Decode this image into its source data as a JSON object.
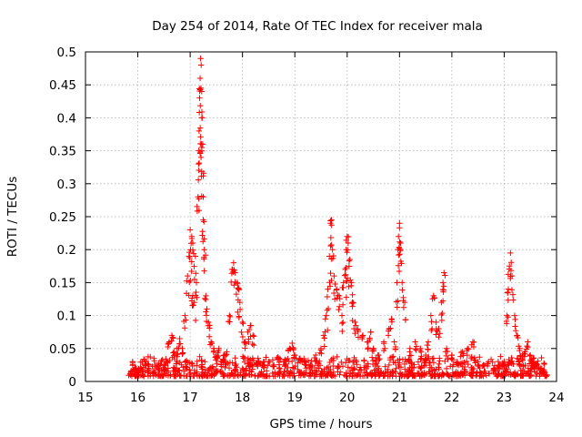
{
  "chart_data": {
    "type": "scatter",
    "title": "Day 254 of 2014, Rate Of TEC Index for receiver mala",
    "xlabel": "GPS time / hours",
    "ylabel": "ROTI / TECUs",
    "xlim": [
      15,
      24
    ],
    "ylim": [
      0,
      0.5
    ],
    "x_ticks": [
      15,
      16,
      17,
      18,
      19,
      20,
      21,
      22,
      23,
      24
    ],
    "y_ticks": [
      0,
      0.05,
      0.1,
      0.15,
      0.2,
      0.25,
      0.3,
      0.35,
      0.4,
      0.45,
      0.5
    ],
    "x_tick_labels": [
      "15",
      "16",
      "17",
      "18",
      "19",
      "20",
      "21",
      "22",
      "23",
      "24"
    ],
    "y_tick_labels": [
      "0",
      "0.05",
      "0.1",
      "0.15",
      "0.2",
      "0.25",
      "0.3",
      "0.35",
      "0.4",
      "0.45",
      "0.5"
    ],
    "grid": true,
    "marker": "+",
    "series_color": "#ff0000",
    "series": [
      {
        "name": "ROTI",
        "points": [
          [
            15.85,
            0.012
          ],
          [
            15.9,
            0.03
          ],
          [
            15.95,
            0.02
          ],
          [
            16.0,
            0.015
          ],
          [
            16.1,
            0.01
          ],
          [
            16.2,
            0.02
          ],
          [
            16.3,
            0.015
          ],
          [
            16.4,
            0.02
          ],
          [
            16.5,
            0.025
          ],
          [
            16.55,
            0.03
          ],
          [
            16.6,
            0.06
          ],
          [
            16.65,
            0.07
          ],
          [
            16.7,
            0.045
          ],
          [
            16.75,
            0.05
          ],
          [
            16.8,
            0.065
          ],
          [
            16.85,
            0.05
          ],
          [
            16.9,
            0.1
          ],
          [
            16.95,
            0.16
          ],
          [
            16.98,
            0.19
          ],
          [
            17.0,
            0.23
          ],
          [
            17.03,
            0.22
          ],
          [
            17.05,
            0.21
          ],
          [
            17.05,
            0.13
          ],
          [
            17.08,
            0.12
          ],
          [
            17.1,
            0.19
          ],
          [
            17.12,
            0.15
          ],
          [
            17.15,
            0.28
          ],
          [
            17.16,
            0.33
          ],
          [
            17.17,
            0.38
          ],
          [
            17.18,
            0.43
          ],
          [
            17.19,
            0.46
          ],
          [
            17.2,
            0.49
          ],
          [
            17.21,
            0.48
          ],
          [
            17.22,
            0.44
          ],
          [
            17.23,
            0.4
          ],
          [
            17.24,
            0.36
          ],
          [
            17.25,
            0.28
          ],
          [
            17.25,
            0.245
          ],
          [
            17.27,
            0.2
          ],
          [
            17.3,
            0.13
          ],
          [
            17.32,
            0.11
          ],
          [
            17.35,
            0.09
          ],
          [
            17.4,
            0.06
          ],
          [
            17.45,
            0.05
          ],
          [
            17.5,
            0.04
          ],
          [
            17.55,
            0.05
          ],
          [
            17.6,
            0.03
          ],
          [
            17.65,
            0.04
          ],
          [
            17.7,
            0.045
          ],
          [
            17.75,
            0.1
          ],
          [
            17.8,
            0.17
          ],
          [
            17.83,
            0.18
          ],
          [
            17.86,
            0.165
          ],
          [
            17.9,
            0.15
          ],
          [
            17.93,
            0.14
          ],
          [
            17.95,
            0.12
          ],
          [
            18.0,
            0.09
          ],
          [
            18.05,
            0.06
          ],
          [
            18.1,
            0.075
          ],
          [
            18.15,
            0.085
          ],
          [
            18.2,
            0.07
          ],
          [
            18.3,
            0.03
          ],
          [
            18.4,
            0.025
          ],
          [
            18.5,
            0.03
          ],
          [
            18.6,
            0.025
          ],
          [
            18.7,
            0.035
          ],
          [
            18.8,
            0.03
          ],
          [
            18.9,
            0.05
          ],
          [
            18.95,
            0.058
          ],
          [
            19.0,
            0.04
          ],
          [
            19.1,
            0.035
          ],
          [
            19.2,
            0.03
          ],
          [
            19.3,
            0.025
          ],
          [
            19.4,
            0.04
          ],
          [
            19.5,
            0.05
          ],
          [
            19.55,
            0.07
          ],
          [
            19.6,
            0.1
          ],
          [
            19.63,
            0.14
          ],
          [
            19.66,
            0.19
          ],
          [
            19.68,
            0.24
          ],
          [
            19.7,
            0.245
          ],
          [
            19.72,
            0.2
          ],
          [
            19.75,
            0.16
          ],
          [
            19.8,
            0.14
          ],
          [
            19.85,
            0.13
          ],
          [
            19.9,
            0.1
          ],
          [
            19.93,
            0.15
          ],
          [
            19.96,
            0.17
          ],
          [
            19.98,
            0.2
          ],
          [
            20.0,
            0.22
          ],
          [
            20.02,
            0.21
          ],
          [
            20.05,
            0.185
          ],
          [
            20.08,
            0.15
          ],
          [
            20.1,
            0.12
          ],
          [
            20.15,
            0.09
          ],
          [
            20.2,
            0.08
          ],
          [
            20.3,
            0.07
          ],
          [
            20.4,
            0.06
          ],
          [
            20.45,
            0.075
          ],
          [
            20.5,
            0.05
          ],
          [
            20.6,
            0.04
          ],
          [
            20.7,
            0.06
          ],
          [
            20.8,
            0.08
          ],
          [
            20.85,
            0.095
          ],
          [
            20.9,
            0.06
          ],
          [
            20.95,
            0.15
          ],
          [
            20.97,
            0.2
          ],
          [
            20.98,
            0.22
          ],
          [
            21.0,
            0.24
          ],
          [
            21.02,
            0.21
          ],
          [
            21.05,
            0.15
          ],
          [
            21.1,
            0.12
          ],
          [
            21.2,
            0.05
          ],
          [
            21.3,
            0.06
          ],
          [
            21.4,
            0.05
          ],
          [
            21.5,
            0.04
          ],
          [
            21.55,
            0.06
          ],
          [
            21.6,
            0.1
          ],
          [
            21.65,
            0.13
          ],
          [
            21.7,
            0.09
          ],
          [
            21.75,
            0.08
          ],
          [
            21.8,
            0.12
          ],
          [
            21.83,
            0.15
          ],
          [
            21.85,
            0.165
          ],
          [
            21.9,
            0.05
          ],
          [
            22.0,
            0.04
          ],
          [
            22.1,
            0.03
          ],
          [
            22.2,
            0.045
          ],
          [
            22.3,
            0.05
          ],
          [
            22.4,
            0.06
          ],
          [
            22.5,
            0.03
          ],
          [
            22.6,
            0.025
          ],
          [
            22.7,
            0.03
          ],
          [
            22.8,
            0.02
          ],
          [
            22.9,
            0.025
          ],
          [
            23.0,
            0.03
          ],
          [
            23.05,
            0.1
          ],
          [
            23.08,
            0.14
          ],
          [
            23.1,
            0.175
          ],
          [
            23.12,
            0.195
          ],
          [
            23.15,
            0.16
          ],
          [
            23.2,
            0.1
          ],
          [
            23.25,
            0.07
          ],
          [
            23.3,
            0.05
          ],
          [
            23.35,
            0.04
          ],
          [
            23.4,
            0.045
          ],
          [
            23.45,
            0.06
          ],
          [
            23.5,
            0.04
          ],
          [
            23.55,
            0.03
          ],
          [
            23.6,
            0.025
          ],
          [
            23.7,
            0.02
          ],
          [
            23.75,
            0.015
          ],
          [
            23.8,
            0.01
          ]
        ]
      }
    ]
  }
}
